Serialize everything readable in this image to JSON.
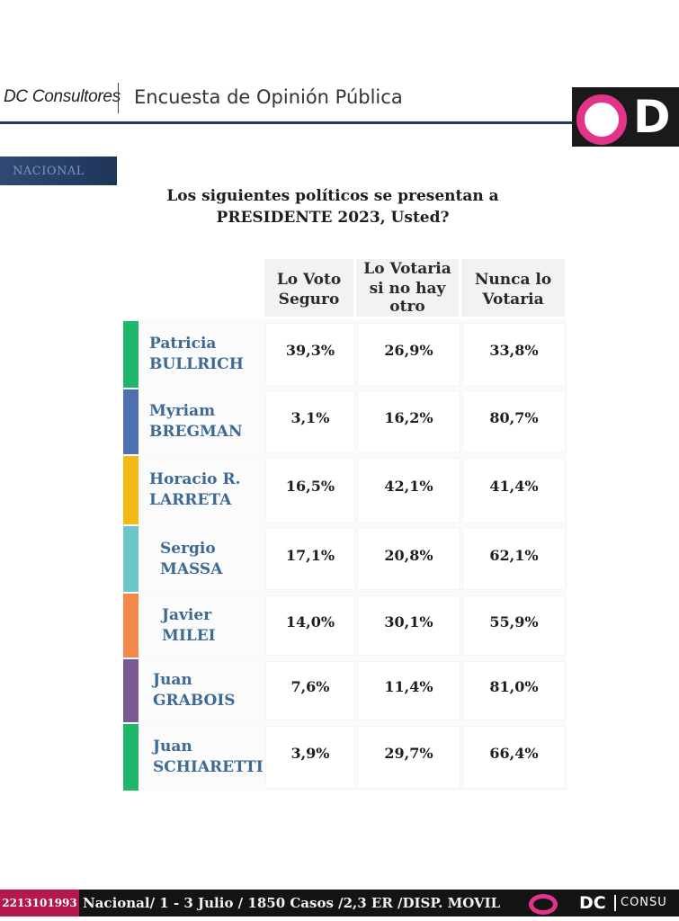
{
  "header": {
    "brand": "DC Consultores",
    "title": "Encuesta de Opinión Pública",
    "logo_text": "D"
  },
  "badge": "NACIONAL",
  "question_line1": "Los siguientes políticos se presentan a",
  "question_line2": "PRESIDENTE 2023, Usted?",
  "columns": [
    [
      "Lo Voto",
      "Seguro"
    ],
    [
      "Lo Votaria",
      "si no hay",
      "otro"
    ],
    [
      "Nunca lo",
      "Votaria"
    ]
  ],
  "rows": [
    {
      "first": "Patricia",
      "last": "BULLRICH",
      "color": "#1fb86b",
      "values": [
        "39,3%",
        "26,9%",
        "33,8%"
      ]
    },
    {
      "first": "Myriam",
      "last": "BREGMAN",
      "color": "#4e6fb0",
      "values": [
        "3,1%",
        "16,2%",
        "80,7%"
      ]
    },
    {
      "first": "Horacio R.",
      "last": "LARRETA",
      "color": "#f2b917",
      "values": [
        "16,5%",
        "42,1%",
        "41,4%"
      ]
    },
    {
      "first": "Sergio",
      "last": "MASSA",
      "color": "#6cc6c9",
      "values": [
        "17,1%",
        "20,8%",
        "62,1%"
      ]
    },
    {
      "first": "Javier",
      "last": "MILEI",
      "color": "#f2884a",
      "values": [
        "14,0%",
        "30,1%",
        "55,9%"
      ]
    },
    {
      "first": "Juan",
      "last": "GRABOIS",
      "color": "#7a5a95",
      "values": [
        "7,6%",
        "11,4%",
        "81,0%"
      ]
    },
    {
      "first": "Juan",
      "last": "SCHIARETTI",
      "color": "#1fb86b",
      "values": [
        "3,9%",
        "29,7%",
        "66,4%"
      ]
    }
  ],
  "footer": {
    "phone": "2213101993",
    "info": "Nacional/ 1 - 3 Julio / 1850 Casos /2,3  ER /DISP. MOVIL",
    "logo_dc": "DC",
    "logo_consu": "CONSU"
  }
}
